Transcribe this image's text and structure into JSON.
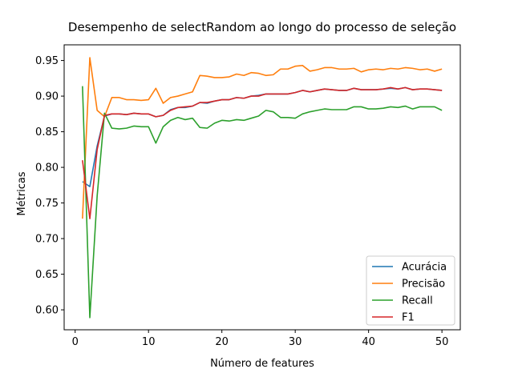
{
  "chart_data": {
    "type": "line",
    "title": "Desempenho de selectRandom ao longo do processo de seleção",
    "xlabel": "Número de features",
    "ylabel": "Métricas",
    "xlim": [
      -1.5,
      52.5
    ],
    "ylim": [
      0.572,
      0.972
    ],
    "xticks": [
      0,
      10,
      20,
      30,
      40,
      50
    ],
    "yticks": [
      0.6,
      0.65,
      0.7,
      0.75,
      0.8,
      0.85,
      0.9,
      0.95
    ],
    "grid": false,
    "legend": "lower-right",
    "x": [
      1,
      2,
      3,
      4,
      5,
      6,
      7,
      8,
      9,
      10,
      11,
      12,
      13,
      14,
      15,
      16,
      17,
      18,
      19,
      20,
      21,
      22,
      23,
      24,
      25,
      26,
      27,
      28,
      29,
      30,
      31,
      32,
      33,
      34,
      35,
      36,
      37,
      38,
      39,
      40,
      41,
      42,
      43,
      44,
      45,
      46,
      47,
      48,
      49,
      50
    ],
    "series": [
      {
        "name": "Acurácia",
        "color": "#1f77b4",
        "values": [
          0.78,
          0.773,
          0.83,
          0.872,
          0.875,
          0.875,
          0.874,
          0.876,
          0.875,
          0.875,
          0.871,
          0.873,
          0.881,
          0.884,
          0.884,
          0.886,
          0.891,
          0.89,
          0.893,
          0.895,
          0.895,
          0.898,
          0.897,
          0.9,
          0.901,
          0.903,
          0.903,
          0.903,
          0.903,
          0.905,
          0.908,
          0.906,
          0.908,
          0.91,
          0.909,
          0.908,
          0.908,
          0.911,
          0.909,
          0.909,
          0.909,
          0.91,
          0.911,
          0.91,
          0.912,
          0.909,
          0.91,
          0.91,
          0.909,
          0.908
        ]
      },
      {
        "name": "Precisão",
        "color": "#ff7f0e",
        "values": [
          0.728,
          0.954,
          0.88,
          0.871,
          0.898,
          0.898,
          0.895,
          0.895,
          0.894,
          0.895,
          0.911,
          0.89,
          0.898,
          0.9,
          0.903,
          0.906,
          0.929,
          0.928,
          0.926,
          0.926,
          0.927,
          0.931,
          0.929,
          0.933,
          0.932,
          0.929,
          0.93,
          0.938,
          0.938,
          0.942,
          0.943,
          0.935,
          0.937,
          0.94,
          0.94,
          0.938,
          0.938,
          0.939,
          0.934,
          0.937,
          0.938,
          0.937,
          0.939,
          0.938,
          0.94,
          0.939,
          0.937,
          0.938,
          0.935,
          0.938
        ]
      },
      {
        "name": "Recall",
        "color": "#2ca02c",
        "values": [
          0.914,
          0.589,
          0.76,
          0.876,
          0.855,
          0.854,
          0.855,
          0.858,
          0.857,
          0.857,
          0.834,
          0.857,
          0.866,
          0.87,
          0.867,
          0.869,
          0.856,
          0.855,
          0.862,
          0.866,
          0.865,
          0.867,
          0.866,
          0.869,
          0.872,
          0.88,
          0.878,
          0.87,
          0.87,
          0.869,
          0.875,
          0.878,
          0.88,
          0.882,
          0.881,
          0.881,
          0.881,
          0.885,
          0.885,
          0.882,
          0.882,
          0.883,
          0.885,
          0.884,
          0.886,
          0.882,
          0.885,
          0.885,
          0.885,
          0.88
        ]
      },
      {
        "name": "F1",
        "color": "#d62728",
        "values": [
          0.81,
          0.728,
          0.825,
          0.873,
          0.875,
          0.875,
          0.874,
          0.876,
          0.875,
          0.875,
          0.871,
          0.873,
          0.88,
          0.884,
          0.885,
          0.886,
          0.891,
          0.891,
          0.893,
          0.895,
          0.895,
          0.898,
          0.897,
          0.9,
          0.9,
          0.903,
          0.903,
          0.903,
          0.903,
          0.905,
          0.908,
          0.906,
          0.908,
          0.91,
          0.909,
          0.908,
          0.908,
          0.911,
          0.909,
          0.909,
          0.909,
          0.91,
          0.912,
          0.91,
          0.912,
          0.909,
          0.91,
          0.91,
          0.909,
          0.908
        ]
      }
    ]
  }
}
